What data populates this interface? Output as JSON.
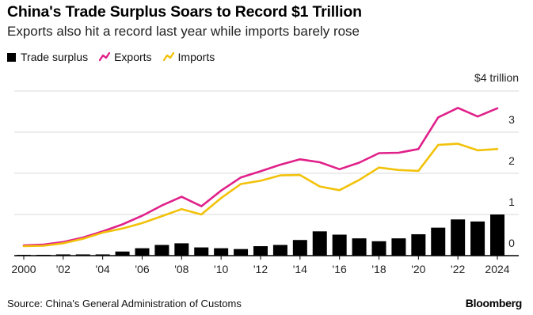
{
  "chart_data": {
    "type": "bar+line",
    "title": "China's Trade Surplus Soars to Record $1 Trillion",
    "subtitle": "Exports also hit a record last year while imports barely rose",
    "x": [
      2000,
      2001,
      2002,
      2003,
      2004,
      2005,
      2006,
      2007,
      2008,
      2009,
      2010,
      2011,
      2012,
      2013,
      2014,
      2015,
      2016,
      2017,
      2018,
      2019,
      2020,
      2021,
      2022,
      2023,
      2024
    ],
    "x_tick_labels": [
      {
        "x": 2000,
        "label": "2000"
      },
      {
        "x": 2002,
        "label": "'02"
      },
      {
        "x": 2004,
        "label": "'04"
      },
      {
        "x": 2006,
        "label": "'06"
      },
      {
        "x": 2008,
        "label": "'08"
      },
      {
        "x": 2010,
        "label": "'10"
      },
      {
        "x": 2012,
        "label": "'12"
      },
      {
        "x": 2014,
        "label": "'14"
      },
      {
        "x": 2016,
        "label": "'16"
      },
      {
        "x": 2018,
        "label": "'18"
      },
      {
        "x": 2020,
        "label": "'20"
      },
      {
        "x": 2022,
        "label": "'22"
      },
      {
        "x": 2024,
        "label": "2024"
      }
    ],
    "y_ticks": [
      {
        "value": 0,
        "label": "0"
      },
      {
        "value": 1,
        "label": "1"
      },
      {
        "value": 2,
        "label": "2"
      },
      {
        "value": 3,
        "label": "3"
      },
      {
        "value": 4,
        "label": "$4 trillion"
      }
    ],
    "ylim": [
      0,
      4
    ],
    "y_axis_side": "right",
    "grid": true,
    "legend_placement": "top-left",
    "series": [
      {
        "name": "Trade surplus",
        "kind": "bar",
        "color": "#000000",
        "values": [
          0.02,
          0.02,
          0.03,
          0.03,
          0.03,
          0.1,
          0.18,
          0.26,
          0.3,
          0.2,
          0.18,
          0.16,
          0.23,
          0.26,
          0.38,
          0.59,
          0.51,
          0.42,
          0.35,
          0.42,
          0.52,
          0.68,
          0.88,
          0.83,
          1.0
        ]
      },
      {
        "name": "Exports",
        "kind": "line",
        "color": "#e0218a",
        "values": [
          0.25,
          0.27,
          0.33,
          0.44,
          0.59,
          0.76,
          0.97,
          1.22,
          1.43,
          1.2,
          1.58,
          1.9,
          2.05,
          2.21,
          2.34,
          2.27,
          2.1,
          2.26,
          2.49,
          2.5,
          2.59,
          3.36,
          3.59,
          3.38,
          3.58
        ]
      },
      {
        "name": "Imports",
        "kind": "line",
        "color": "#f2c20a",
        "values": [
          0.23,
          0.24,
          0.3,
          0.41,
          0.56,
          0.66,
          0.79,
          0.96,
          1.13,
          1.0,
          1.4,
          1.74,
          1.82,
          1.95,
          1.96,
          1.68,
          1.59,
          1.84,
          2.14,
          2.08,
          2.06,
          2.69,
          2.72,
          2.56,
          2.59
        ]
      }
    ]
  },
  "footer": {
    "source": "Source: China's General Administration of Customs",
    "brand": "Bloomberg"
  }
}
